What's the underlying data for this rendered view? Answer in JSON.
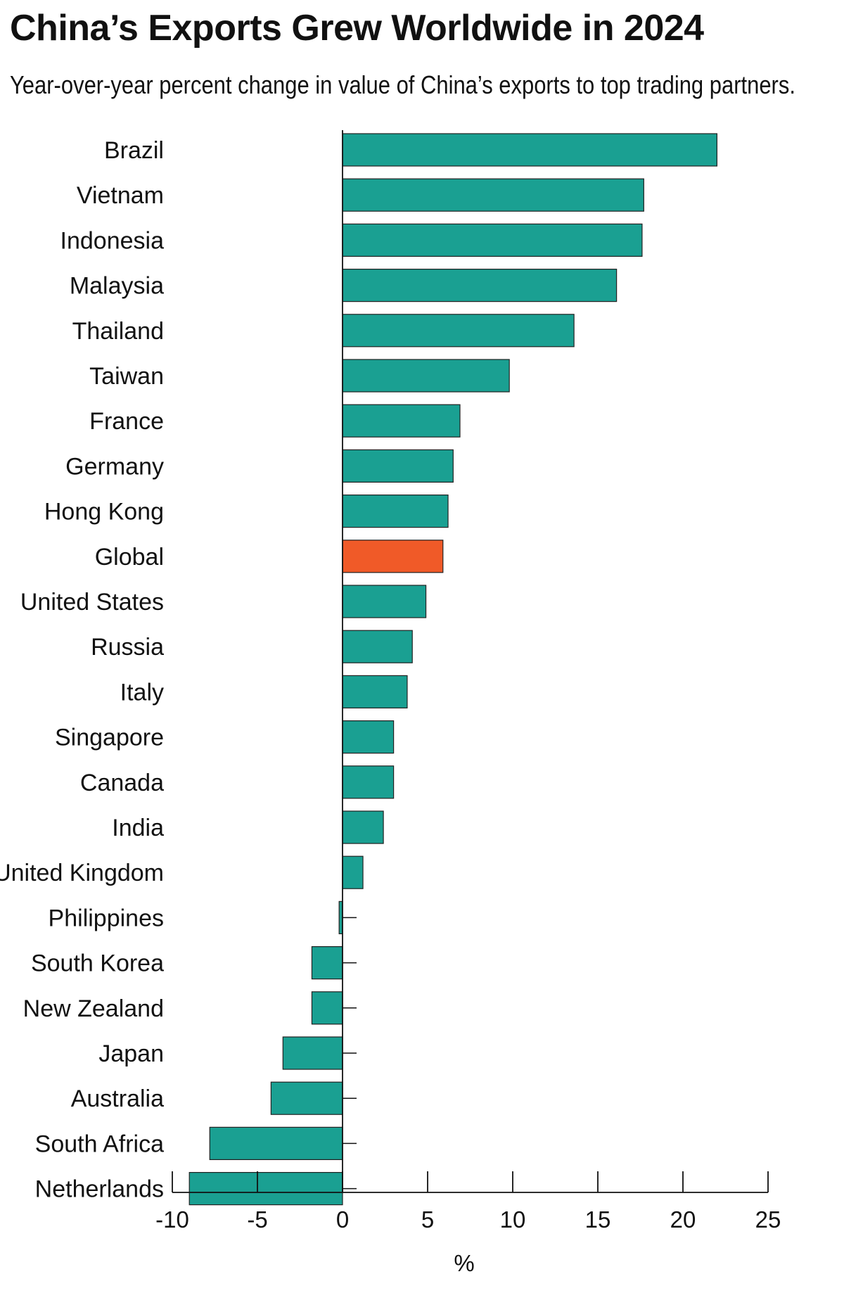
{
  "title": "China’s Exports Grew Worldwide in 2024",
  "subtitle": "Year-over-year percent change in value of China’s exports to top trading partners.",
  "colors": {
    "bar": "#1aa092",
    "highlight": "#f05a28",
    "axis": "#111111"
  },
  "chart_data": {
    "type": "bar",
    "orientation": "horizontal",
    "title": "China’s Exports Grew Worldwide in 2024",
    "subtitle": "Year-over-year percent change in value of China’s exports to top trading partners.",
    "xlabel": "%",
    "ylabel": "",
    "xlim": [
      -10,
      25
    ],
    "xticks": [
      -10,
      -5,
      0,
      5,
      10,
      15,
      20,
      25
    ],
    "xtick_labels": [
      "-10",
      "-5",
      "0",
      "5",
      "10",
      "15",
      "20",
      "25"
    ],
    "grid": false,
    "legend": "none",
    "highlighted_category": "Global",
    "categories": [
      "Brazil",
      "Vietnam",
      "Indonesia",
      "Malaysia",
      "Thailand",
      "Taiwan",
      "France",
      "Germany",
      "Hong Kong",
      "Global",
      "United States",
      "Russia",
      "Italy",
      "Singapore",
      "Canada",
      "India",
      "United Kingdom",
      "Philippines",
      "South Korea",
      "New Zealand",
      "Japan",
      "Australia",
      "South Africa",
      "Netherlands"
    ],
    "values": [
      22.0,
      17.7,
      17.6,
      16.1,
      13.6,
      9.8,
      6.9,
      6.5,
      6.2,
      5.9,
      4.9,
      4.1,
      3.8,
      3.0,
      3.0,
      2.4,
      1.2,
      -0.2,
      -1.8,
      -1.8,
      -3.5,
      -4.2,
      -7.8,
      -9.0
    ]
  }
}
